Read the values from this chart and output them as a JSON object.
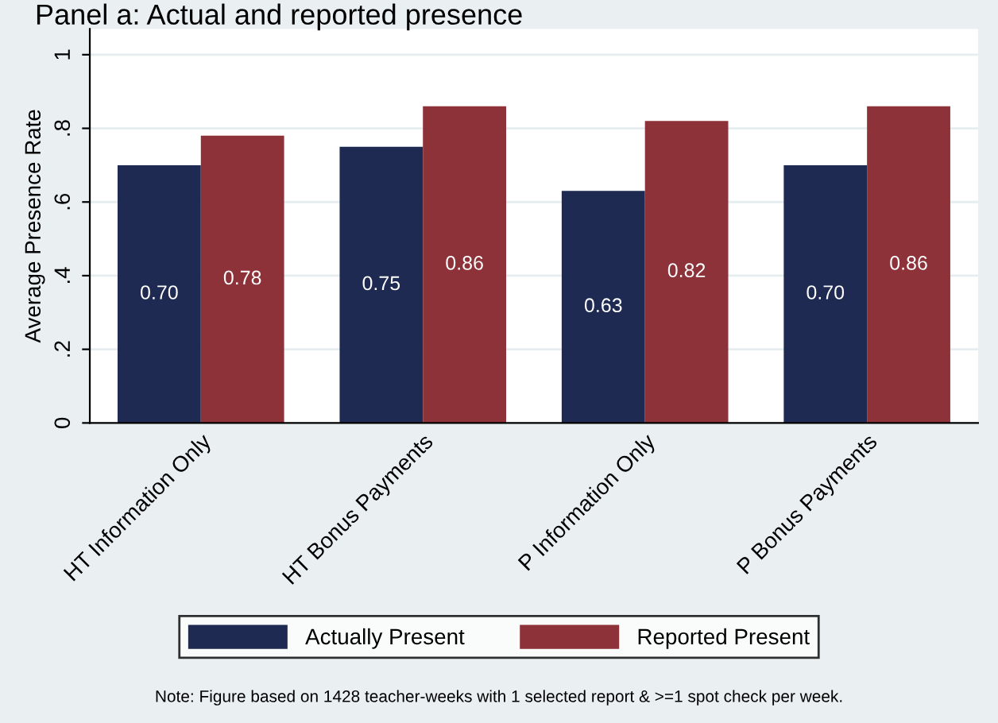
{
  "chart_data": {
    "type": "bar",
    "title": "Panel a: Actual and reported presence",
    "ylabel": "Average Presence Rate",
    "categories": [
      "HT Information Only",
      "HT Bonus Payments",
      "P Information Only",
      "P Bonus Payments"
    ],
    "series": [
      {
        "name": "Actually Present",
        "color": "#1f2a52",
        "values": [
          0.7,
          0.75,
          0.63,
          0.7
        ],
        "value_labels": [
          "0.70",
          "0.75",
          "0.63",
          "0.70"
        ]
      },
      {
        "name": "Reported Present",
        "color": "#8e323a",
        "values": [
          0.78,
          0.86,
          0.82,
          0.86
        ],
        "value_labels": [
          "0.78",
          "0.86",
          "0.82",
          "0.86"
        ]
      }
    ],
    "ylim": [
      0,
      1.07
    ],
    "yticks": [
      {
        "value": 0,
        "label": "0"
      },
      {
        "value": 0.2,
        "label": ".2"
      },
      {
        "value": 0.4,
        "label": ".4"
      },
      {
        "value": 0.6,
        "label": ".6"
      },
      {
        "value": 0.8,
        "label": ".8"
      },
      {
        "value": 1,
        "label": "1"
      }
    ],
    "grid": "y",
    "legend": "bottom",
    "annotations": [
      "Note: Figure based on 1428 teacher-weeks with 1 selected report & >=1 spot check per week."
    ]
  }
}
